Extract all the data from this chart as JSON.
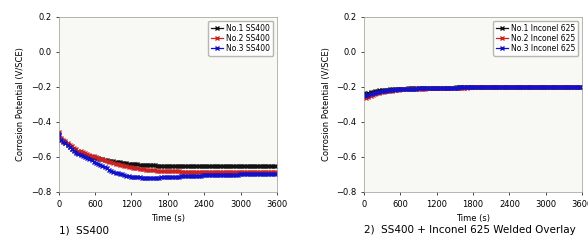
{
  "plot1": {
    "caption": "1)  SS400",
    "xlabel": "Time (s)",
    "ylabel": "Corrosion Potential (V/SCE)",
    "xlim": [
      0,
      3600
    ],
    "ylim": [
      -0.8,
      0.2
    ],
    "yticks": [
      -0.8,
      -0.6,
      -0.4,
      -0.2,
      0.0,
      0.2
    ],
    "xticks": [
      0,
      600,
      1200,
      1800,
      2400,
      3000,
      3600
    ],
    "series": [
      {
        "label": "No.1 SS400",
        "color": "#111111",
        "pts_t": [
          0,
          30,
          300,
          600,
          900,
          1200,
          1500,
          1800,
          2400,
          3000,
          3600
        ],
        "pts_y": [
          -0.475,
          -0.5,
          -0.575,
          -0.605,
          -0.625,
          -0.64,
          -0.648,
          -0.65,
          -0.652,
          -0.652,
          -0.65
        ]
      },
      {
        "label": "No.2 SS400",
        "color": "#cc2222",
        "pts_t": [
          0,
          30,
          300,
          600,
          900,
          1200,
          1500,
          1800,
          2400,
          3000,
          3600
        ],
        "pts_y": [
          -0.46,
          -0.49,
          -0.56,
          -0.6,
          -0.635,
          -0.66,
          -0.675,
          -0.682,
          -0.685,
          -0.685,
          -0.683
        ]
      },
      {
        "label": "No.3 SS400",
        "color": "#1111cc",
        "pts_t": [
          0,
          30,
          300,
          600,
          900,
          1200,
          1500,
          1800,
          2400,
          3000,
          3600
        ],
        "pts_y": [
          -0.47,
          -0.5,
          -0.58,
          -0.63,
          -0.685,
          -0.715,
          -0.72,
          -0.715,
          -0.705,
          -0.7,
          -0.697
        ]
      }
    ]
  },
  "plot2": {
    "caption": "2)  SS400 + Inconel 625 Welded Overlay",
    "xlabel": "Time (s)",
    "ylabel": "Corrosion Potential (V/SCE)",
    "xlim": [
      0,
      3600
    ],
    "ylim": [
      -0.8,
      0.2
    ],
    "yticks": [
      -0.8,
      -0.6,
      -0.4,
      -0.2,
      0.0,
      0.2
    ],
    "xticks": [
      0,
      600,
      1200,
      1800,
      2400,
      3000,
      3600
    ],
    "series": [
      {
        "label": "No.1 Inconel 625",
        "color": "#111111",
        "pts_t": [
          0,
          20,
          60,
          120,
          300,
          600,
          1200,
          1800,
          2400,
          3000,
          3600
        ],
        "pts_y": [
          -0.235,
          -0.24,
          -0.235,
          -0.228,
          -0.218,
          -0.21,
          -0.205,
          -0.202,
          -0.201,
          -0.2,
          -0.2
        ]
      },
      {
        "label": "No.2 Inconel 625",
        "color": "#cc2222",
        "pts_t": [
          0,
          20,
          60,
          120,
          300,
          600,
          1200,
          1800,
          2400,
          3000,
          3600
        ],
        "pts_y": [
          -0.26,
          -0.265,
          -0.258,
          -0.248,
          -0.228,
          -0.215,
          -0.207,
          -0.203,
          -0.201,
          -0.2,
          -0.199
        ]
      },
      {
        "label": "No.3 Inconel 625",
        "color": "#1111cc",
        "pts_t": [
          0,
          20,
          60,
          120,
          300,
          600,
          1200,
          1800,
          2400,
          3000,
          3600
        ],
        "pts_y": [
          -0.248,
          -0.253,
          -0.246,
          -0.238,
          -0.223,
          -0.212,
          -0.206,
          -0.202,
          -0.2,
          -0.199,
          -0.199
        ]
      }
    ]
  },
  "background_color": "#ffffff",
  "plot_bg": "#f8f8f4",
  "font_size": 6.0,
  "caption_font_size": 7.5,
  "marker": "x",
  "linewidth": 0.9,
  "markersize": 2.5,
  "markevery": 8
}
